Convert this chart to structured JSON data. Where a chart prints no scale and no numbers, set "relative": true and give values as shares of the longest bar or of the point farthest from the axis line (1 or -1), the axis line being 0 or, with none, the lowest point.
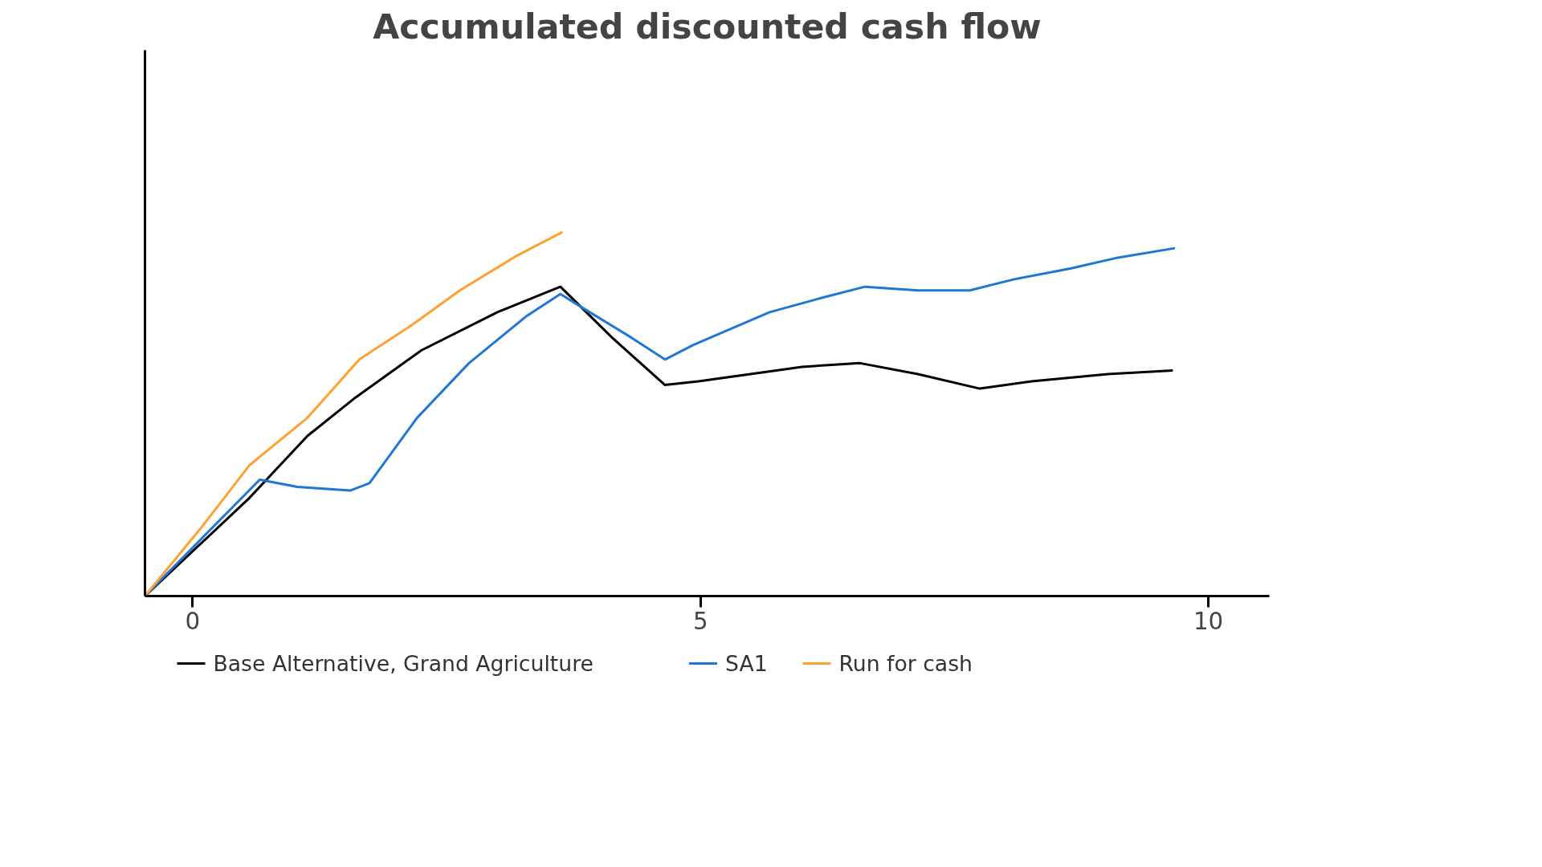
{
  "chart_data": {
    "type": "line",
    "title": "Accumulated discounted cash flow",
    "relative": true,
    "xlim": [
      -0.47,
      10.6
    ],
    "xticks": [
      0,
      5,
      10
    ],
    "tick_labels": "x",
    "grid": false,
    "legend": "bottom",
    "marker": "none",
    "line_style": "solid",
    "series": [
      {
        "name": "Base Alternative, Grand Agriculture",
        "color": "#000000",
        "x": [
          -0.47,
          0.56,
          1.13,
          1.6,
          2.25,
          3.0,
          3.62,
          4.13,
          4.65,
          4.98,
          6.0,
          6.57,
          7.14,
          7.75,
          8.26,
          9.01,
          9.65
        ],
        "values": [
          0,
          0.27,
          0.44,
          0.545,
          0.675,
          0.78,
          0.85,
          0.71,
          0.58,
          0.59,
          0.63,
          0.64,
          0.61,
          0.57,
          0.59,
          0.61,
          0.62
        ]
      },
      {
        "name": "SA1",
        "color": "#1f77d4",
        "x": [
          -0.47,
          0.66,
          1.03,
          1.55,
          1.74,
          2.21,
          2.72,
          3.29,
          3.62,
          3.85,
          4.32,
          4.65,
          4.93,
          5.68,
          6.2,
          6.62,
          7.14,
          7.65,
          8.08,
          8.64,
          9.11,
          9.67
        ],
        "values": [
          0,
          0.32,
          0.3,
          0.29,
          0.31,
          0.49,
          0.64,
          0.77,
          0.83,
          0.79,
          0.71,
          0.65,
          0.69,
          0.78,
          0.82,
          0.85,
          0.84,
          0.84,
          0.87,
          0.9,
          0.93,
          0.956
        ]
      },
      {
        "name": "Run for cash",
        "color": "#ffa030",
        "x": [
          -0.47,
          0.09,
          0.56,
          1.13,
          1.64,
          2.16,
          2.63,
          3.19,
          3.64
        ],
        "values": [
          0,
          0.19,
          0.36,
          0.49,
          0.65,
          0.745,
          0.84,
          0.935,
          1.0
        ]
      }
    ]
  }
}
